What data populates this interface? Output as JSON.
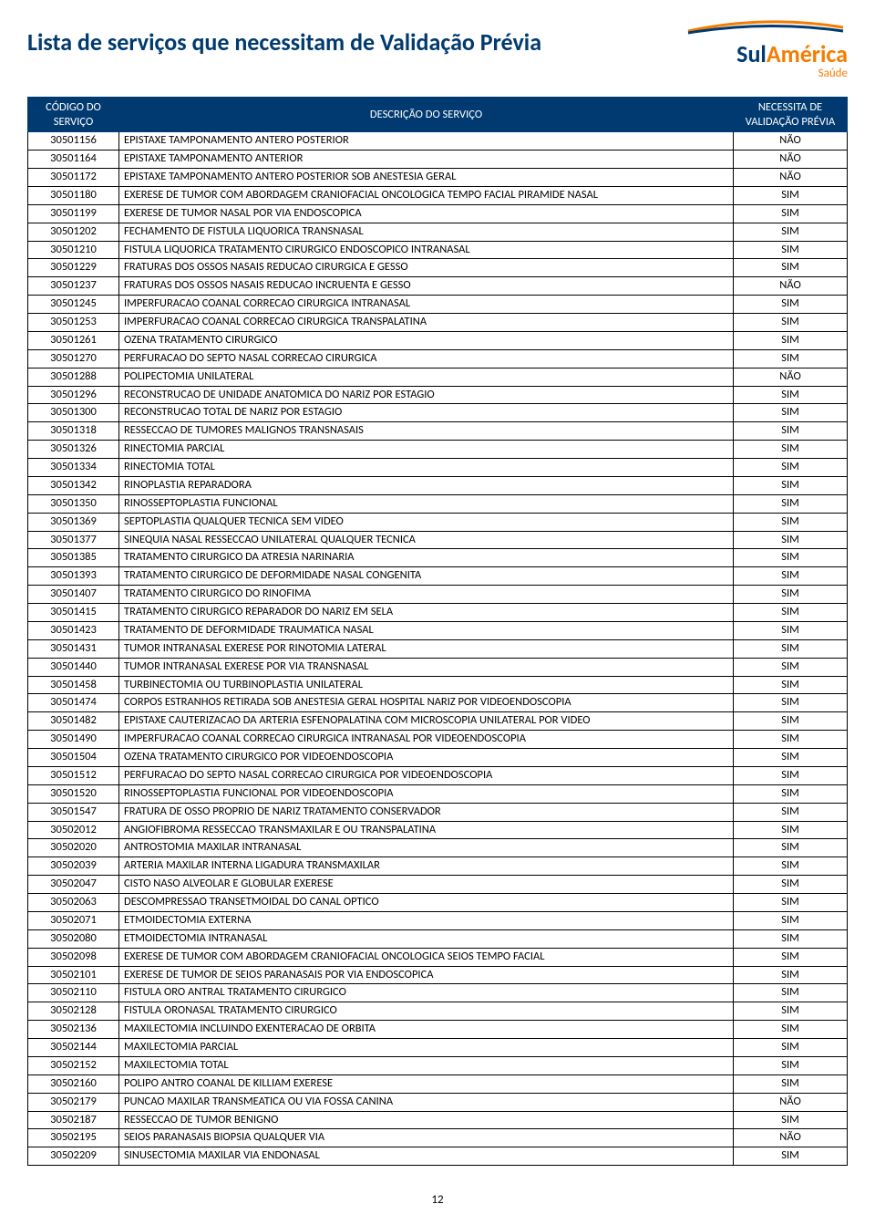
{
  "page": {
    "title": "Lista de serviços que necessitam de Validação Prévia",
    "number": "12"
  },
  "logo": {
    "brand_sul": "Sul",
    "brand_america": "América",
    "subtitle": "Saúde",
    "swoosh_top_color": "#f57c00",
    "swoosh_bottom_color": "#003a70"
  },
  "colors": {
    "header_bg": "#003a70",
    "header_fg": "#ffffff",
    "border": "#000000",
    "title": "#003a70"
  },
  "table": {
    "columns": {
      "code": "CÓDIGO DO SERVIÇO",
      "desc": "DESCRIÇÃO DO SERVIÇO",
      "val": "NECESSITA DE VALIDAÇÃO PRÉVIA"
    },
    "rows": [
      {
        "code": "30501156",
        "desc": "EPISTAXE   TAMPONAMENTO  ANTERO POSTERIOR",
        "val": "NÃO"
      },
      {
        "code": "30501164",
        "desc": "EPISTAXE   TAMPONAMENTO ANTERIOR",
        "val": "NÃO"
      },
      {
        "code": "30501172",
        "desc": "EPISTAXE   TAMPONAMENTO ANTERO POSTERIOR SOB ANESTESIA GERAL",
        "val": "NÃO"
      },
      {
        "code": "30501180",
        "desc": "EXERESE DE TUMOR COM ABORDAGEM CRANIOFACIAL ONCOLOGICA  TEMPO FACIAL  PIRAMIDE NASAL",
        "val": "SIM"
      },
      {
        "code": "30501199",
        "desc": "EXERESE DE TUMOR NASAL POR VIA ENDOSCOPICA",
        "val": "SIM"
      },
      {
        "code": "30501202",
        "desc": "FECHAMENTO DE FISTULA LIQUORICA TRANSNASAL",
        "val": "SIM"
      },
      {
        "code": "30501210",
        "desc": "FISTULA LIQUORICA   TRATAMENTO CIRURGICO ENDOSCOPICO INTRANASAL",
        "val": "SIM"
      },
      {
        "code": "30501229",
        "desc": "FRATURAS DOS OSSOS NASAIS   REDUCAO CIRURGICA E GESSO",
        "val": "SIM"
      },
      {
        "code": "30501237",
        "desc": "FRATURAS DOS OSSOS NASAIS   REDUCAO INCRUENTA E GESSO",
        "val": "NÃO"
      },
      {
        "code": "30501245",
        "desc": "IMPERFURACAO COANAL   CORRECAO CIRURGICA INTRANASAL",
        "val": "SIM"
      },
      {
        "code": "30501253",
        "desc": "IMPERFURACAO COANAL   CORRECAO CIRURGICA TRANSPALATINA",
        "val": "SIM"
      },
      {
        "code": "30501261",
        "desc": "OZENA   TRATAMENTO CIRURGICO",
        "val": "SIM"
      },
      {
        "code": "30501270",
        "desc": "PERFURACAO DO SEPTO NASAL   CORRECAO CIRURGICA",
        "val": "SIM"
      },
      {
        "code": "30501288",
        "desc": "POLIPECTOMIA   UNILATERAL",
        "val": "NÃO"
      },
      {
        "code": "30501296",
        "desc": "RECONSTRUCAO DE UNIDADE ANATOMICA DO NARIZ   POR ESTAGIO",
        "val": "SIM"
      },
      {
        "code": "30501300",
        "desc": "RECONSTRUCAO TOTAL DE NARIZ   POR ESTAGIO",
        "val": "SIM"
      },
      {
        "code": "30501318",
        "desc": "RESSECCAO DE TUMORES MALIGNOS TRANSNASAIS",
        "val": "SIM"
      },
      {
        "code": "30501326",
        "desc": "RINECTOMIA PARCIAL",
        "val": "SIM"
      },
      {
        "code": "30501334",
        "desc": "RINECTOMIA TOTAL",
        "val": "SIM"
      },
      {
        "code": "30501342",
        "desc": "RINOPLASTIA REPARADORA",
        "val": "SIM"
      },
      {
        "code": "30501350",
        "desc": "RINOSSEPTOPLASTIA FUNCIONAL",
        "val": "SIM"
      },
      {
        "code": "30501369",
        "desc": "SEPTOPLASTIA  QUALQUER TECNICA SEM VIDEO",
        "val": "SIM"
      },
      {
        "code": "30501377",
        "desc": "SINEQUIA NASAL   RESSECCAO UNILATERAL   QUALQUER TECNICA",
        "val": "SIM"
      },
      {
        "code": "30501385",
        "desc": "TRATAMENTO CIRURGICO DA ATRESIA NARINARIA",
        "val": "SIM"
      },
      {
        "code": "30501393",
        "desc": "TRATAMENTO CIRURGICO DE DEFORMIDADE NASAL CONGENITA",
        "val": "SIM"
      },
      {
        "code": "30501407",
        "desc": "TRATAMENTO CIRURGICO DO RINOFIMA",
        "val": "SIM"
      },
      {
        "code": "30501415",
        "desc": "TRATAMENTO CIRURGICO REPARADOR DO NARIZ EM SELA",
        "val": "SIM"
      },
      {
        "code": "30501423",
        "desc": "TRATAMENTO DE DEFORMIDADE TRAUMATICA NASAL",
        "val": "SIM"
      },
      {
        "code": "30501431",
        "desc": "TUMOR INTRANASAL   EXERESE POR RINOTOMIA LATERAL",
        "val": "SIM"
      },
      {
        "code": "30501440",
        "desc": "TUMOR INTRANASAL   EXERESE POR VIA TRANSNASAL",
        "val": "SIM"
      },
      {
        "code": "30501458",
        "desc": "TURBINECTOMIA OU TURBINOPLASTIA   UNILATERAL",
        "val": "SIM"
      },
      {
        "code": "30501474",
        "desc": "CORPOS ESTRANHOS   RETIRADA SOB ANESTESIA GERAL   HOSPITAL  NARIZ    POR VIDEOENDOSCOPIA",
        "val": "SIM"
      },
      {
        "code": "30501482",
        "desc": "EPISTAXE   CAUTERIZACAO DA ARTERIA ESFENOPALATINA COM MICROSCOPIA   UNILATERAL POR VIDEO",
        "val": "SIM"
      },
      {
        "code": "30501490",
        "desc": "IMPERFURACAO COANAL   CORRECAO CIRURGICA INTRANASAL POR VIDEOENDOSCOPIA",
        "val": "SIM"
      },
      {
        "code": "30501504",
        "desc": "OZENA   TRATAMENTO CIRURGICO POR VIDEOENDOSCOPIA",
        "val": "SIM"
      },
      {
        "code": "30501512",
        "desc": "PERFURACAO DO SEPTO NASAL   CORRECAO CIRURGICA POR VIDEOENDOSCOPIA",
        "val": "SIM"
      },
      {
        "code": "30501520",
        "desc": "RINOSSEPTOPLASTIA FUNCIONAL POR VIDEOENDOSCOPIA",
        "val": "SIM"
      },
      {
        "code": "30501547",
        "desc": "FRATURA DE OSSO PROPRIO DE NARIZ   TRATAMENTO CONSERVADOR",
        "val": "SIM"
      },
      {
        "code": "30502012",
        "desc": "ANGIOFIBROMA   RESSECCAO TRANSMAXILAR E OU TRANSPALATINA",
        "val": "SIM"
      },
      {
        "code": "30502020",
        "desc": "ANTROSTOMIA MAXILAR INTRANASAL",
        "val": "SIM"
      },
      {
        "code": "30502039",
        "desc": "ARTERIA MAXILAR INTERNA   LIGADURA TRANSMAXILAR",
        "val": "SIM"
      },
      {
        "code": "30502047",
        "desc": "CISTO NASO ALVEOLAR E GLOBULAR   EXERESE",
        "val": "SIM"
      },
      {
        "code": "30502063",
        "desc": "DESCOMPRESSAO TRANSETMOIDAL DO CANAL OPTICO",
        "val": "SIM"
      },
      {
        "code": "30502071",
        "desc": "ETMOIDECTOMIA EXTERNA",
        "val": "SIM"
      },
      {
        "code": "30502080",
        "desc": "ETMOIDECTOMIA INTRANASAL",
        "val": "SIM"
      },
      {
        "code": "30502098",
        "desc": "EXERESE DE TUMOR COM ABORDAGEM CRANIOFACIAL ONCOLOGICA  SEIOS    TEMPO FACIAL",
        "val": "SIM"
      },
      {
        "code": "30502101",
        "desc": "EXERESE DE TUMOR DE SEIOS PARANASAIS POR VIA ENDOSCOPICA",
        "val": "SIM"
      },
      {
        "code": "30502110",
        "desc": "FISTULA ORO ANTRAL   TRATAMENTO CIRURGICO",
        "val": "SIM"
      },
      {
        "code": "30502128",
        "desc": "FISTULA ORONASAL   TRATAMENTO CIRURGICO",
        "val": "SIM"
      },
      {
        "code": "30502136",
        "desc": "MAXILECTOMIA INCLUINDO EXENTERACAO DE ORBITA",
        "val": "SIM"
      },
      {
        "code": "30502144",
        "desc": "MAXILECTOMIA PARCIAL",
        "val": "SIM"
      },
      {
        "code": "30502152",
        "desc": "MAXILECTOMIA TOTAL",
        "val": "SIM"
      },
      {
        "code": "30502160",
        "desc": "POLIPO ANTRO COANAL DE KILLIAM   EXERESE",
        "val": "SIM"
      },
      {
        "code": "30502179",
        "desc": "PUNCAO MAXILAR TRANSMEATICA OU VIA FOSSA CANINA",
        "val": "NÃO"
      },
      {
        "code": "30502187",
        "desc": "RESSECCAO DE TUMOR BENIGNO",
        "val": "SIM"
      },
      {
        "code": "30502195",
        "desc": "SEIOS PARANASAIS   BIOPSIA QUALQUER VIA",
        "val": "NÃO"
      },
      {
        "code": "30502209",
        "desc": "SINUSECTOMIA MAXILAR   VIA ENDONASAL",
        "val": "SIM"
      }
    ]
  }
}
